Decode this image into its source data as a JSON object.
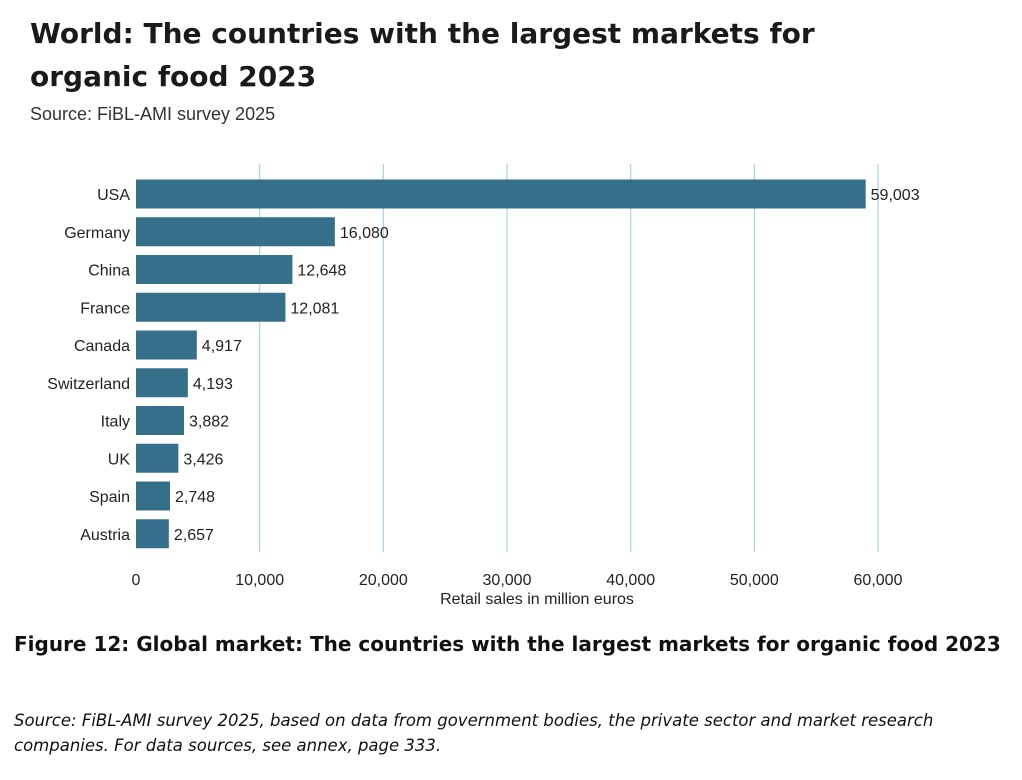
{
  "chart_data": {
    "type": "bar",
    "orientation": "horizontal",
    "title": "World: The countries with the largest markets for organic food 2023",
    "subtitle": "Source: FiBL-AMI survey 2025",
    "xlabel": "Retail sales in million euros",
    "ylabel": "",
    "categories": [
      "USA",
      "Germany",
      "China",
      "France",
      "Canada",
      "Switzerland",
      "Italy",
      "UK",
      "Spain",
      "Austria"
    ],
    "values": [
      59003,
      16080,
      12648,
      12081,
      4917,
      4193,
      3882,
      3426,
      2748,
      2657
    ],
    "value_labels": [
      "59,003",
      "16,080",
      "12,648",
      "12,081",
      "4,917",
      "4,193",
      "3,882",
      "3,426",
      "2,748",
      "2,657"
    ],
    "xlim": [
      0,
      60000
    ],
    "ticks": [
      0,
      10000,
      20000,
      30000,
      40000,
      50000,
      60000
    ],
    "tick_labels": [
      "0",
      "10,000",
      "20,000",
      "30,000",
      "40,000",
      "50,000",
      "60,000"
    ],
    "grid": true,
    "bar_color": "#356f8a",
    "grid_color": "#a9d3e6"
  },
  "caption": "Figure 12: Global market: The countries with the largest markets for organic food 2023",
  "source_note": "Source: FiBL-AMI survey 2025, based on data from government bodies, the private sector and market research companies. For data sources, see annex, page 333."
}
